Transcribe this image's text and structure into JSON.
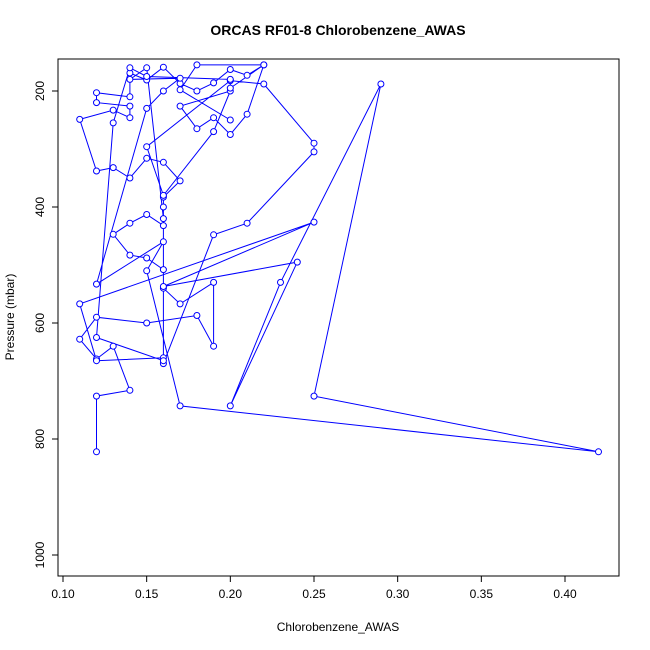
{
  "chart_data": {
    "type": "line",
    "title": "ORCAS RF01-8 Chlorobenzene_AWAS",
    "xlabel": "Chlorobenzene_AWAS",
    "ylabel": "Pressure (mbar)",
    "xlim": [
      0.1,
      0.42
    ],
    "ylim_top_to_bottom": [
      150,
      1020
    ],
    "y_reversed": true,
    "x_ticks": [
      "0.10",
      "0.15",
      "0.20",
      "0.25",
      "0.30",
      "0.35",
      "0.40"
    ],
    "x_tick_values": [
      0.1,
      0.15,
      0.2,
      0.25,
      0.3,
      0.35,
      0.4
    ],
    "y_ticks": [
      "200",
      "400",
      "600",
      "800",
      "1000"
    ],
    "y_tick_values": [
      200,
      400,
      600,
      800,
      1000
    ],
    "grid": false,
    "series_color": "#0000ff",
    "series": [
      {
        "marker": "open-circle",
        "points": [
          [
            0.12,
            822
          ],
          [
            0.12,
            726
          ],
          [
            0.14,
            716
          ],
          [
            0.13,
            640
          ],
          [
            0.12,
            662
          ],
          [
            0.11,
            628
          ],
          [
            0.12,
            590
          ],
          [
            0.15,
            600
          ],
          [
            0.18,
            587
          ],
          [
            0.19,
            640
          ],
          [
            0.19,
            530
          ],
          [
            0.17,
            567
          ],
          [
            0.16,
            540
          ],
          [
            0.16,
            508
          ],
          [
            0.15,
            488
          ],
          [
            0.14,
            483
          ],
          [
            0.13,
            447
          ],
          [
            0.14,
            428
          ],
          [
            0.15,
            413
          ],
          [
            0.16,
            432
          ],
          [
            0.16,
            400
          ],
          [
            0.16,
            383
          ],
          [
            0.17,
            355
          ],
          [
            0.16,
            323
          ],
          [
            0.15,
            316
          ],
          [
            0.14,
            350
          ],
          [
            0.13,
            332
          ],
          [
            0.12,
            338
          ],
          [
            0.11,
            249
          ],
          [
            0.13,
            233
          ],
          [
            0.14,
            246
          ],
          [
            0.14,
            226
          ],
          [
            0.12,
            220
          ],
          [
            0.12,
            203
          ],
          [
            0.14,
            210
          ],
          [
            0.14,
            169
          ],
          [
            0.15,
            181
          ],
          [
            0.16,
            159
          ],
          [
            0.17,
            187
          ],
          [
            0.18,
            200
          ],
          [
            0.19,
            186
          ],
          [
            0.2,
            163
          ],
          [
            0.21,
            173
          ],
          [
            0.22,
            155
          ],
          [
            0.21,
            240
          ],
          [
            0.2,
            275
          ],
          [
            0.19,
            246
          ],
          [
            0.18,
            265
          ],
          [
            0.17,
            226
          ],
          [
            0.2,
            200
          ],
          [
            0.19,
            270
          ],
          [
            0.16,
            380
          ],
          [
            0.15,
            296
          ],
          [
            0.2,
            182
          ],
          [
            0.22,
            188
          ],
          [
            0.25,
            290
          ],
          [
            0.25,
            305
          ],
          [
            0.21,
            428
          ],
          [
            0.19,
            448
          ],
          [
            0.16,
            670
          ],
          [
            0.16,
            660
          ],
          [
            0.12,
            665
          ],
          [
            0.11,
            567
          ],
          [
            0.25,
            426
          ],
          [
            0.16,
            537
          ],
          [
            0.24,
            495
          ],
          [
            0.2,
            743
          ],
          [
            0.23,
            530
          ],
          [
            0.29,
            188
          ],
          [
            0.25,
            726
          ],
          [
            0.42,
            822
          ],
          [
            0.17,
            743
          ],
          [
            0.15,
            510
          ],
          [
            0.16,
            460
          ],
          [
            0.12,
            533
          ],
          [
            0.15,
            230
          ],
          [
            0.16,
            200
          ],
          [
            0.17,
            178
          ],
          [
            0.14,
            180
          ],
          [
            0.15,
            160
          ],
          [
            0.16,
            420
          ],
          [
            0.16,
            665
          ],
          [
            0.12,
            625
          ],
          [
            0.13,
            255
          ],
          [
            0.14,
            160
          ],
          [
            0.15,
            175
          ],
          [
            0.2,
            180
          ],
          [
            0.2,
            195
          ],
          [
            0.22,
            155
          ],
          [
            0.18,
            155
          ],
          [
            0.17,
            198
          ],
          [
            0.2,
            250
          ]
        ]
      }
    ]
  }
}
